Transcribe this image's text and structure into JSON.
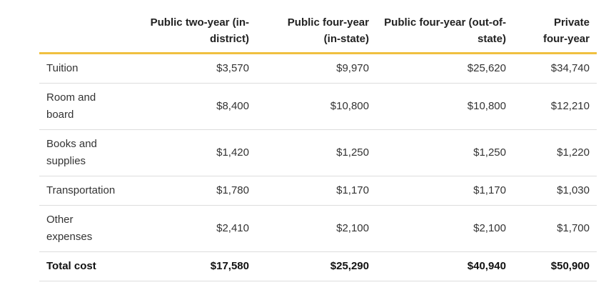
{
  "table": {
    "header": [
      "",
      "Public two-year (in-district)",
      "Public four-year (in-state)",
      "Public four-year (out-of-state)",
      "Private four-year"
    ],
    "rows": [
      [
        "Tuition",
        "$3,570",
        "$9,970",
        "$25,620",
        "$34,740"
      ],
      [
        "Room and board",
        "$8,400",
        "$10,800",
        "$10,800",
        "$12,210"
      ],
      [
        "Books and supplies",
        "$1,420",
        "$1,250",
        "$1,250",
        "$1,220"
      ],
      [
        "Transportation",
        "$1,780",
        "$1,170",
        "$1,170",
        "$1,030"
      ],
      [
        "Other expenses",
        "$2,410",
        "$2,100",
        "$2,100",
        "$1,700"
      ],
      [
        "Total cost",
        "$17,580",
        "$25,290",
        "$40,940",
        "$50,900"
      ]
    ]
  }
}
